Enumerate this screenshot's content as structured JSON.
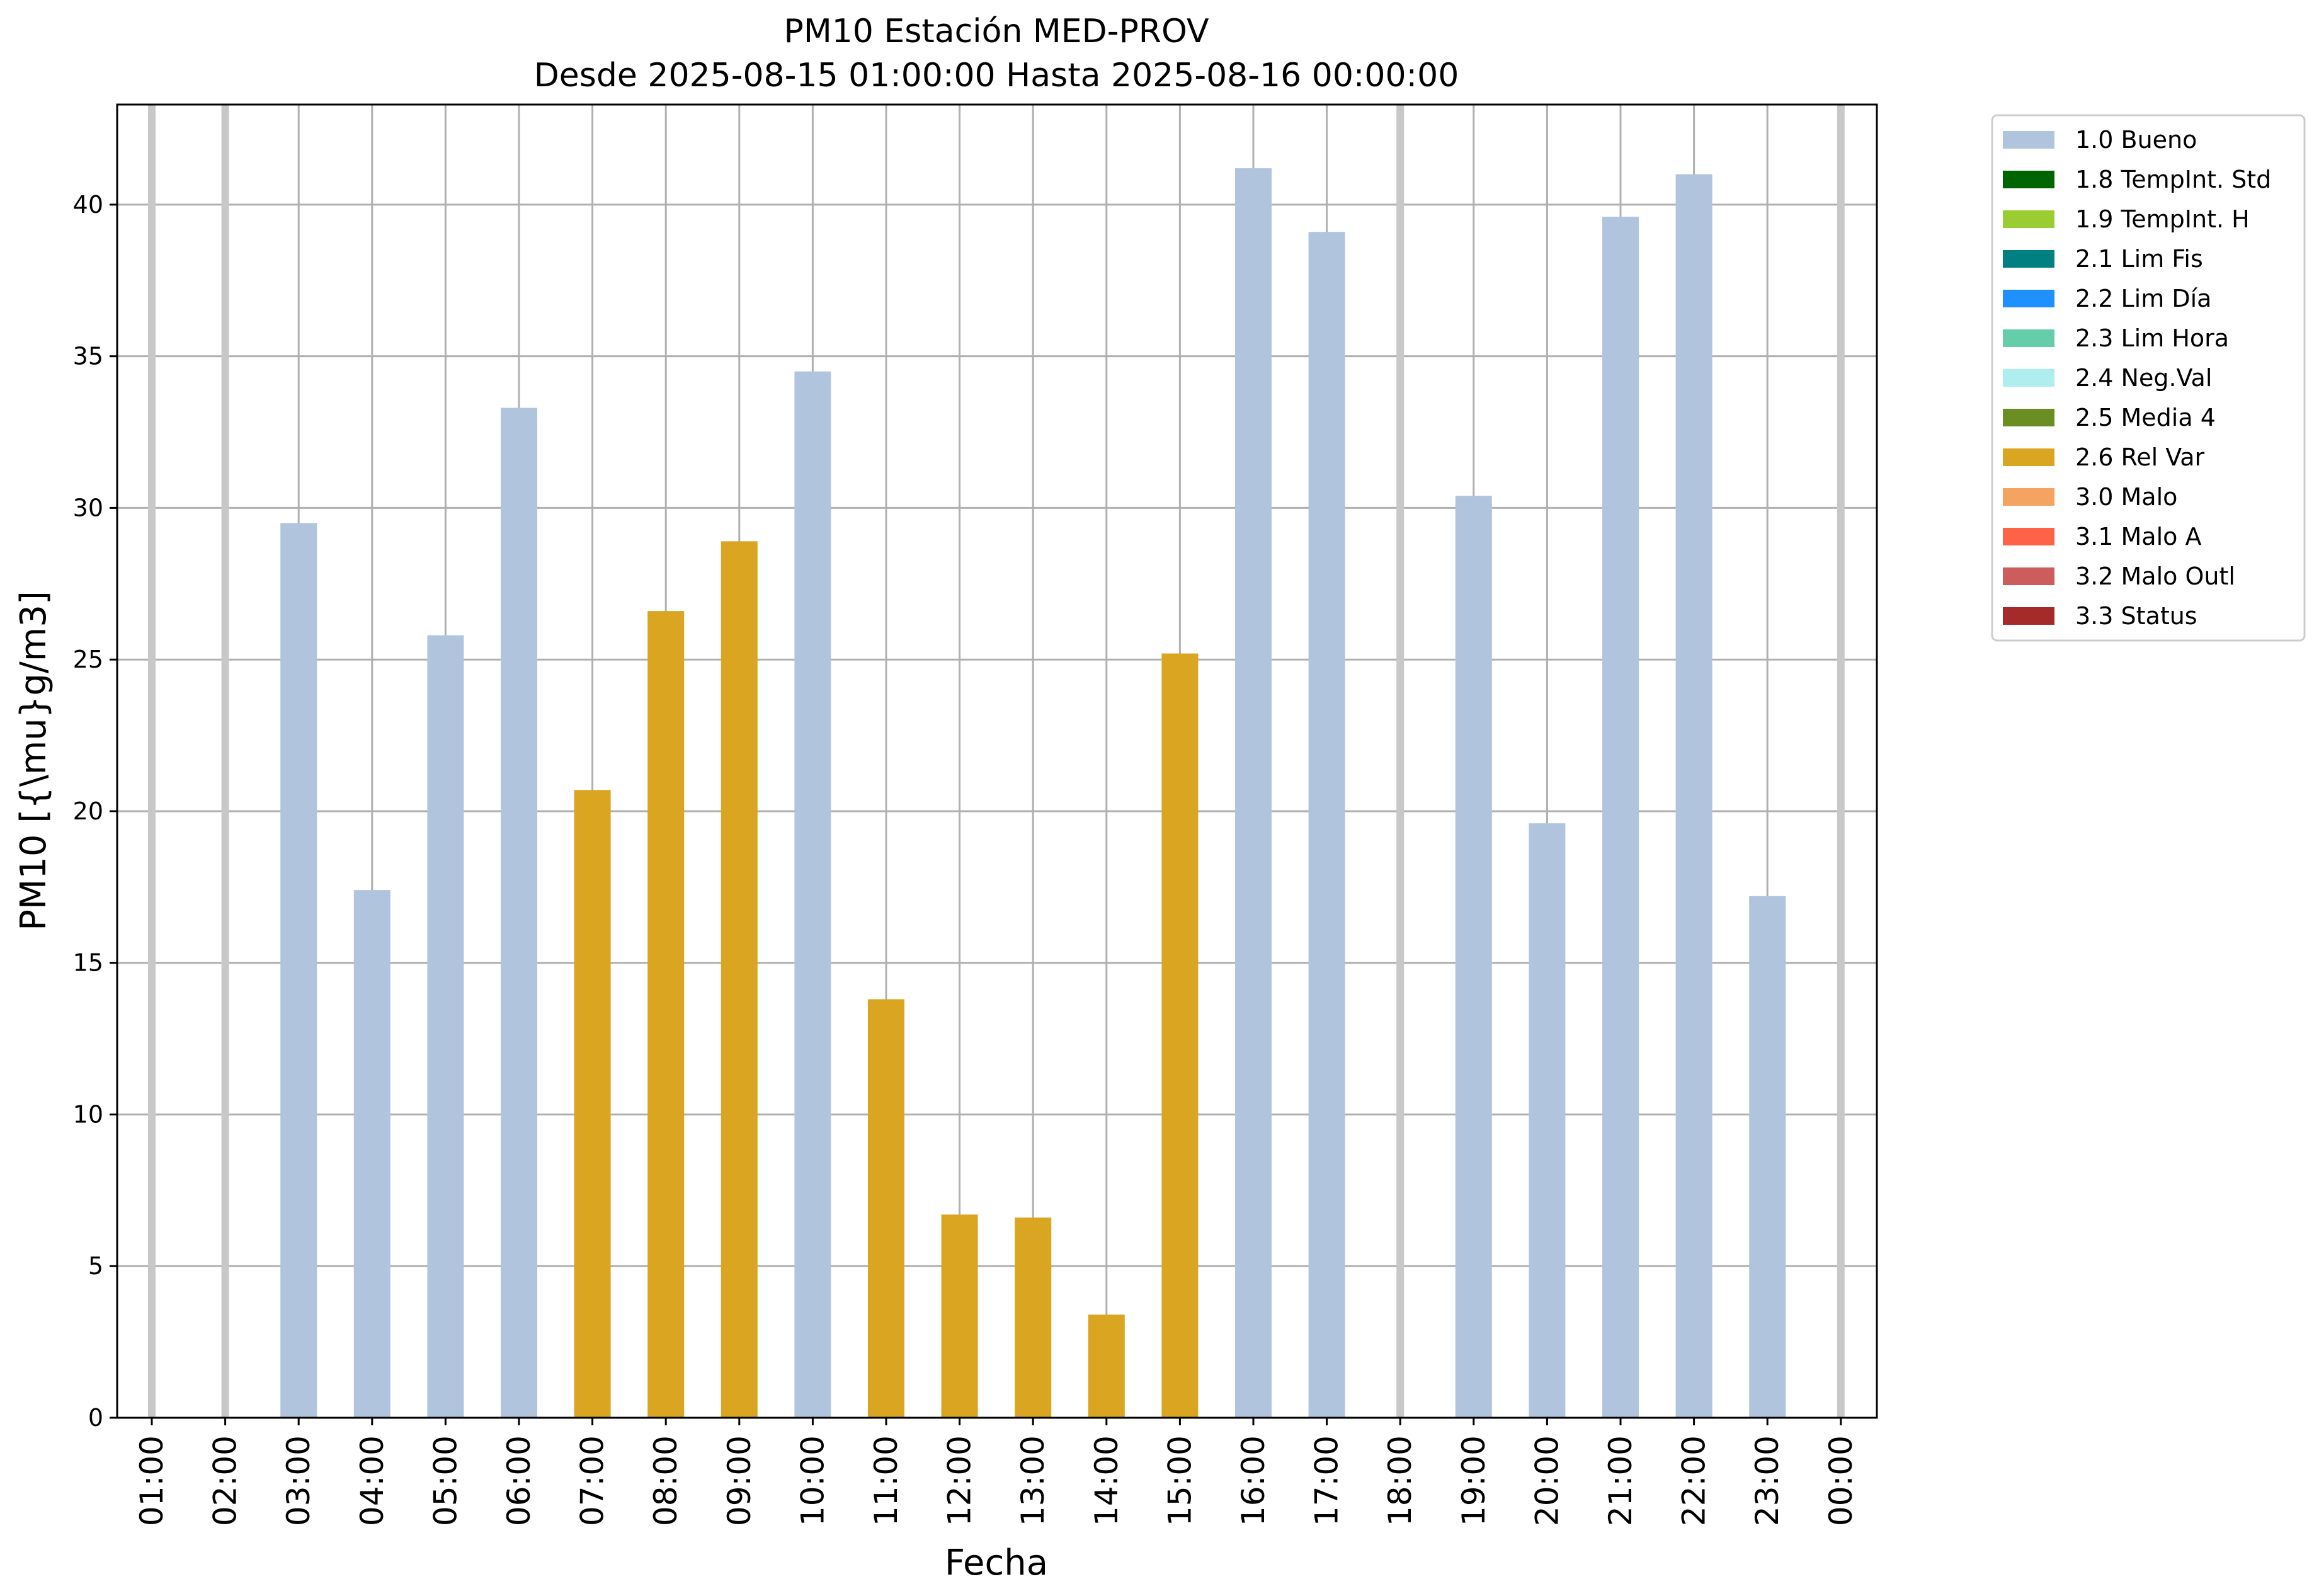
{
  "chart_data": {
    "type": "bar",
    "title": "PM10 Estación MED-PROV",
    "subtitle": "Desde 2025-08-15 01:00:00 Hasta 2025-08-16 00:00:00",
    "xlabel": "Fecha",
    "ylabel": "PM10 [{\\mu}g/m3]",
    "ylim": [
      0,
      43.3
    ],
    "yticks": [
      0,
      5,
      10,
      15,
      20,
      25,
      30,
      35,
      40
    ],
    "grid": true,
    "legend_position": "outside-top-right",
    "categories": [
      "01:00",
      "02:00",
      "03:00",
      "04:00",
      "05:00",
      "06:00",
      "07:00",
      "08:00",
      "09:00",
      "10:00",
      "11:00",
      "12:00",
      "13:00",
      "14:00",
      "15:00",
      "16:00",
      "17:00",
      "18:00",
      "19:00",
      "20:00",
      "21:00",
      "22:00",
      "23:00",
      "00:00"
    ],
    "values": [
      null,
      null,
      29.5,
      17.4,
      25.8,
      33.3,
      20.7,
      26.6,
      28.9,
      34.5,
      13.8,
      6.7,
      6.6,
      3.4,
      25.2,
      41.2,
      39.1,
      null,
      30.4,
      19.6,
      39.6,
      41.0,
      17.2,
      null
    ],
    "flags": [
      "missing",
      "missing",
      "1.0 Bueno",
      "1.0 Bueno",
      "1.0 Bueno",
      "1.0 Bueno",
      "2.6 Rel Var",
      "2.6 Rel Var",
      "2.6 Rel Var",
      "1.0 Bueno",
      "2.6 Rel Var",
      "2.6 Rel Var",
      "2.6 Rel Var",
      "2.6 Rel Var",
      "2.6 Rel Var",
      "1.0 Bueno",
      "1.0 Bueno",
      "missing",
      "1.0 Bueno",
      "1.0 Bueno",
      "1.0 Bueno",
      "1.0 Bueno",
      "1.0 Bueno",
      "missing"
    ],
    "missing_color": "#c8c8c8",
    "legend": [
      {
        "label": "1.0 Bueno",
        "color": "#b0c4de"
      },
      {
        "label": "1.8 TempInt. Std",
        "color": "#006400"
      },
      {
        "label": "1.9 TempInt. H",
        "color": "#9acd32"
      },
      {
        "label": "2.1 Lim Fis",
        "color": "#008080"
      },
      {
        "label": "2.2 Lim Día",
        "color": "#1e90ff"
      },
      {
        "label": "2.3 Lim Hora",
        "color": "#66cdaa"
      },
      {
        "label": "2.4 Neg.Val",
        "color": "#afeeee"
      },
      {
        "label": "2.5 Media 4",
        "color": "#6b8e23"
      },
      {
        "label": "2.6 Rel Var",
        "color": "#daa520"
      },
      {
        "label": "3.0 Malo",
        "color": "#f4a460"
      },
      {
        "label": "3.1 Malo A",
        "color": "#ff6347"
      },
      {
        "label": "3.2 Malo Outl",
        "color": "#cd5c5c"
      },
      {
        "label": "3.3 Status",
        "color": "#a52a2a"
      }
    ]
  }
}
